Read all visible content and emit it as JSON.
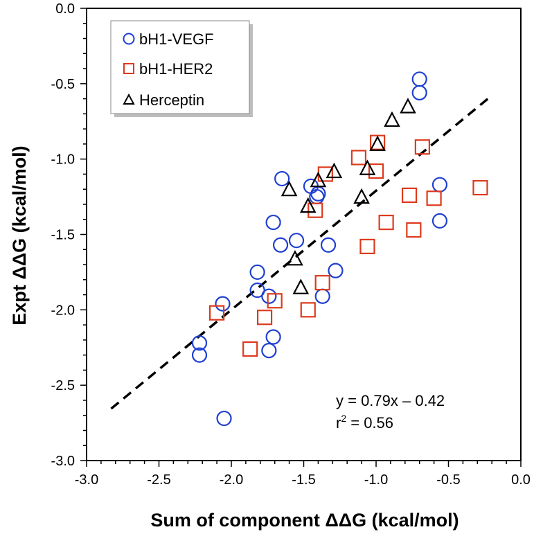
{
  "chart_data": {
    "type": "scatter",
    "xlabel": "Sum of component ΔΔG (kcal/mol)",
    "ylabel": "Expt ΔΔG (kcal/mol)",
    "xlim": [
      -3.0,
      0.0
    ],
    "ylim": [
      -3.0,
      0.0
    ],
    "x_ticks": [
      "-3.0",
      "-2.5",
      "-2.0",
      "-1.5",
      "-1.0",
      "-0.5",
      "0.0"
    ],
    "y_ticks": [
      "0.0",
      "-0.5",
      "-1.0",
      "-1.5",
      "-2.0",
      "-2.5",
      "-3.0"
    ],
    "x_tick_values": [
      -3.0,
      -2.5,
      -2.0,
      -1.5,
      -1.0,
      -0.5,
      0.0
    ],
    "y_tick_values": [
      0.0,
      -0.5,
      -1.0,
      -1.5,
      -2.0,
      -2.5,
      -3.0
    ],
    "legend_position": "top-left",
    "colors": {
      "vegf": "#1f3fd1",
      "her2": "#dd3a1c",
      "herceptin": "#000000",
      "fit": "#000000"
    },
    "series": [
      {
        "name": "bH1-VEGF",
        "marker": "circle",
        "x": [
          -2.22,
          -2.22,
          -2.06,
          -2.05,
          -1.82,
          -1.82,
          -1.74,
          -1.74,
          -1.71,
          -1.71,
          -1.66,
          -1.65,
          -1.55,
          -1.45,
          -1.41,
          -1.4,
          -1.37,
          -1.33,
          -1.28,
          -0.7,
          -0.7,
          -0.56,
          -0.56
        ],
        "y": [
          -2.22,
          -2.3,
          -1.96,
          -2.72,
          -1.75,
          -1.87,
          -1.91,
          -2.27,
          -2.18,
          -1.42,
          -1.57,
          -1.13,
          -1.54,
          -1.18,
          -1.25,
          -1.23,
          -1.91,
          -1.57,
          -1.74,
          -0.47,
          -0.56,
          -1.17,
          -1.41
        ]
      },
      {
        "name": "bH1-HER2",
        "marker": "square",
        "x": [
          -2.1,
          -1.87,
          -1.77,
          -1.7,
          -1.47,
          -1.42,
          -1.37,
          -1.35,
          -1.12,
          -1.06,
          -1.0,
          -0.99,
          -0.93,
          -0.77,
          -0.74,
          -0.68,
          -0.6,
          -0.28
        ],
        "y": [
          -2.02,
          -2.26,
          -2.05,
          -1.94,
          -2.0,
          -1.34,
          -1.82,
          -1.1,
          -0.99,
          -1.58,
          -1.08,
          -0.89,
          -1.42,
          -1.24,
          -1.47,
          -0.92,
          -1.26,
          -1.19
        ]
      },
      {
        "name": "Herceptin",
        "marker": "triangle",
        "x": [
          -1.6,
          -1.56,
          -1.52,
          -1.47,
          -1.4,
          -1.29,
          -1.1,
          -1.06,
          -0.99,
          -0.89,
          -0.78
        ],
        "y": [
          -1.2,
          -1.66,
          -1.85,
          -1.31,
          -1.14,
          -1.08,
          -1.25,
          -1.06,
          -0.9,
          -0.74,
          -0.65
        ]
      }
    ],
    "fit_line": {
      "slope": 0.79,
      "intercept": -0.42,
      "x_range": [
        -2.83,
        -0.22
      ],
      "style": "dashed"
    },
    "annotations": {
      "equation": "y = 0.79x – 0.42",
      "r2_prefix": "r",
      "r2_sup": "2",
      "r2_suffix": " = 0.56"
    }
  }
}
